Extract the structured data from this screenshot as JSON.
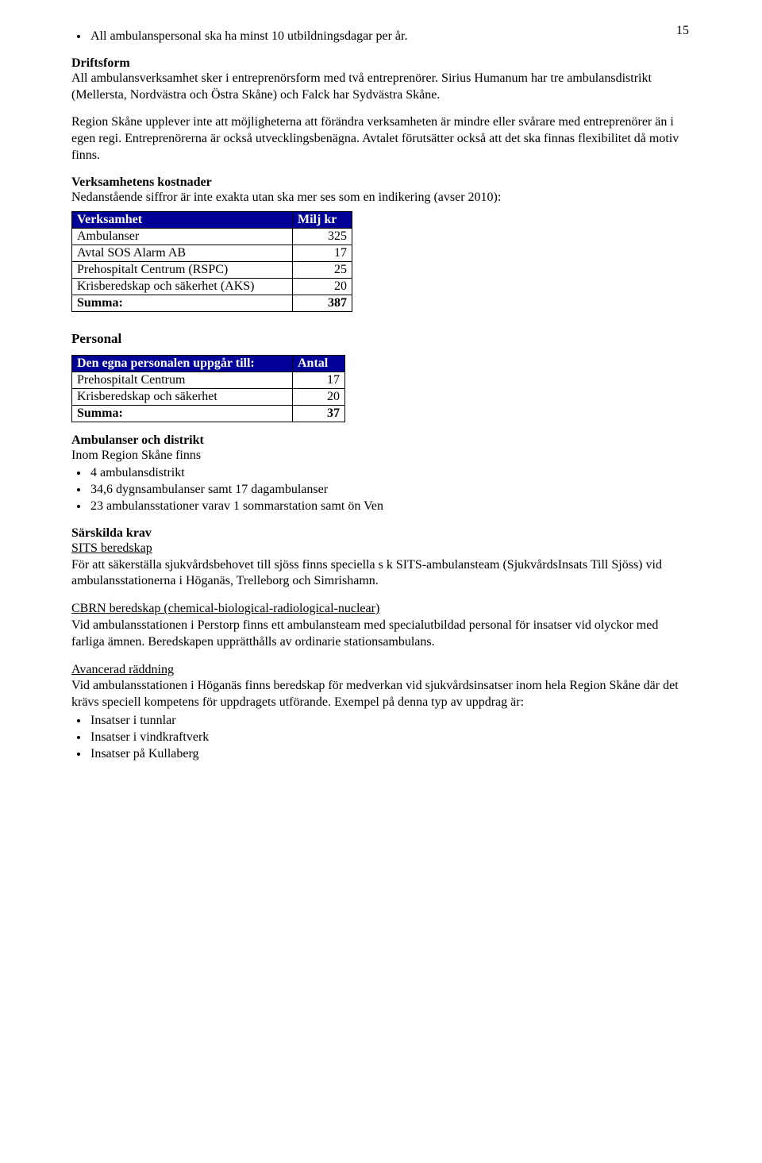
{
  "page_number": "15",
  "bullet_top": "All ambulanspersonal ska ha minst 10 utbildningsdagar per år.",
  "driftsform": {
    "heading": "Driftsform",
    "p1": "All ambulansverksamhet sker i entreprenörsform med två entreprenörer. Sirius Humanum har tre ambulansdistrikt (Mellersta, Nordvästra och Östra Skåne) och Falck har Sydvästra Skåne.",
    "p2": "Region Skåne upplever inte att möjligheterna att förändra verksamheten är mindre eller svårare med entreprenörer än i egen regi. Entreprenörerna är också utvecklingsbenägna. Avtalet förutsätter också att det ska finnas flexibilitet då motiv finns."
  },
  "kostnader": {
    "heading": "Verksamhetens kostnader",
    "intro": "Nedanstående siffror är inte exakta utan ska mer ses som en indikering (avser 2010):",
    "col1": "Verksamhet",
    "col2": "Milj kr",
    "rows": [
      {
        "label": "Ambulanser",
        "value": "325"
      },
      {
        "label": "Avtal SOS Alarm AB",
        "value": "17"
      },
      {
        "label": "Prehospitalt Centrum (RSPC)",
        "value": "25"
      },
      {
        "label": "Krisberedskap och säkerhet (AKS)",
        "value": "20"
      }
    ],
    "sum_label": "Summa:",
    "sum_value": "387"
  },
  "personal": {
    "heading": "Personal",
    "col1": "Den egna personalen uppgår till:",
    "col2": "Antal",
    "rows": [
      {
        "label": "Prehospitalt Centrum",
        "value": "17"
      },
      {
        "label": "Krisberedskap och säkerhet",
        "value": "20"
      }
    ],
    "sum_label": "Summa:",
    "sum_value": "37"
  },
  "amb_distrikt": {
    "heading": "Ambulanser och distrikt",
    "intro": "Inom Region Skåne finns",
    "bullets": [
      "4 ambulansdistrikt",
      "34,6 dygnsambulanser samt 17 dagambulanser",
      "23 ambulansstationer varav 1 sommarstation samt ön Ven"
    ]
  },
  "sarskilda": {
    "heading": "Särskilda krav",
    "sits_heading": "SITS beredskap",
    "sits_body": "För att säkerställa sjukvårdsbehovet till sjöss finns speciella s k SITS-ambulansteam (SjukvårdsInsats Till Sjöss) vid ambulansstationerna i Höganäs, Trelleborg och Simrishamn.",
    "cbrn_heading": "CBRN beredskap (chemical-biological-radiological-nuclear)",
    "cbrn_body": "Vid ambulansstationen i Perstorp finns ett ambulansteam med specialutbildad personal för insatser vid olyckor med farliga ämnen. Beredskapen upprätthålls av ordinarie stationsambulans.",
    "adv_heading": "Avancerad räddning",
    "adv_body": "Vid ambulansstationen i Höganäs finns beredskap för medverkan vid sjukvårdsinsatser inom hela Region Skåne där det krävs speciell kompetens för uppdragets utförande. Exempel på denna typ av uppdrag är:",
    "adv_bullets": [
      "Insatser i tunnlar",
      "Insatser i vindkraftverk",
      "Insatser på Kullaberg"
    ]
  }
}
